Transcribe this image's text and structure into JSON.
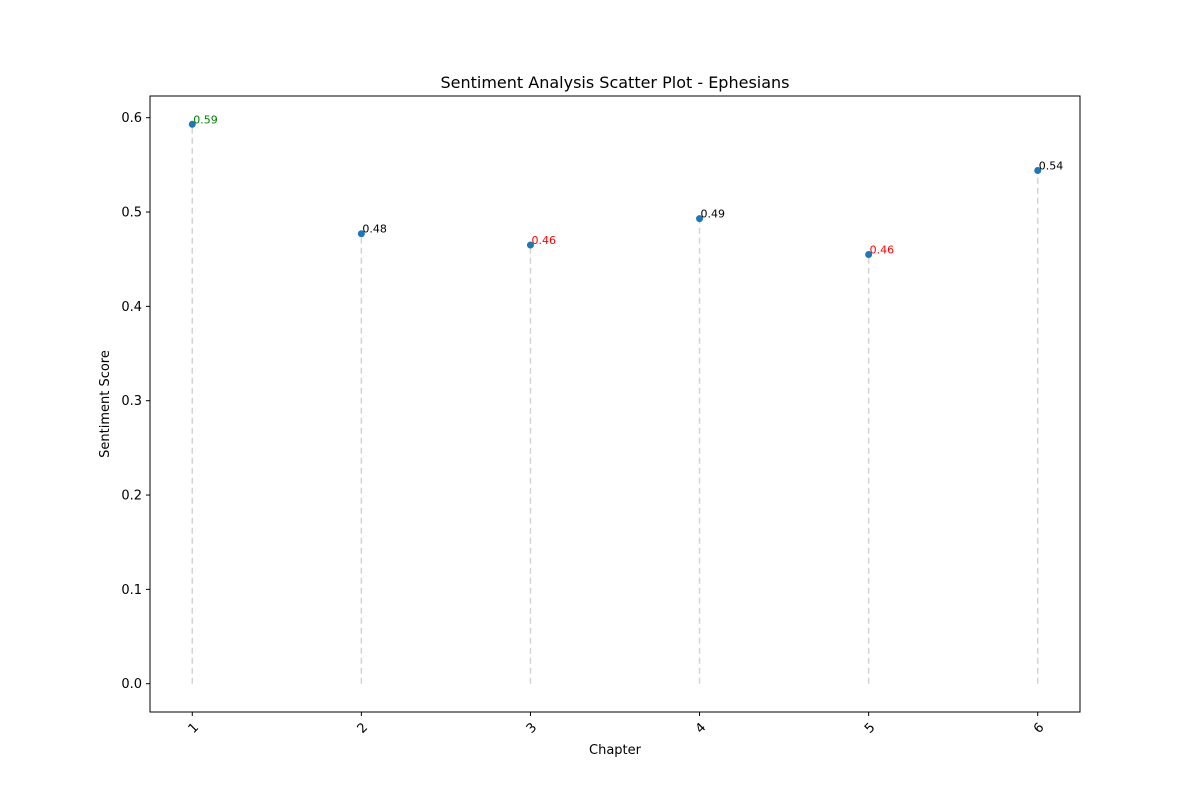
{
  "chart_data": {
    "type": "scatter",
    "title": "Sentiment Analysis Scatter Plot - Ephesians",
    "xlabel": "Chapter",
    "ylabel": "Sentiment Score",
    "x": [
      1,
      2,
      3,
      4,
      5,
      6
    ],
    "x_tick_labels": [
      "1",
      "2",
      "3",
      "4",
      "5",
      "6"
    ],
    "y": [
      0.593,
      0.477,
      0.465,
      0.493,
      0.455,
      0.544
    ],
    "labels": [
      "0.59",
      "0.48",
      "0.46",
      "0.49",
      "0.46",
      "0.54"
    ],
    "label_colors": [
      "#008000",
      "#000000",
      "#ff0000",
      "#000000",
      "#ff0000",
      "#000000"
    ],
    "y_ticks": [
      0.0,
      0.1,
      0.2,
      0.3,
      0.4,
      0.5,
      0.6
    ],
    "y_tick_labels": [
      "0.0",
      "0.1",
      "0.2",
      "0.3",
      "0.4",
      "0.5",
      "0.6"
    ],
    "xlim": [
      0.75,
      6.25
    ],
    "ylim": [
      -0.03,
      0.623
    ],
    "grid": false,
    "stems": true,
    "point_color": "#1f77b4",
    "stem_color": "#d3d3d3"
  }
}
